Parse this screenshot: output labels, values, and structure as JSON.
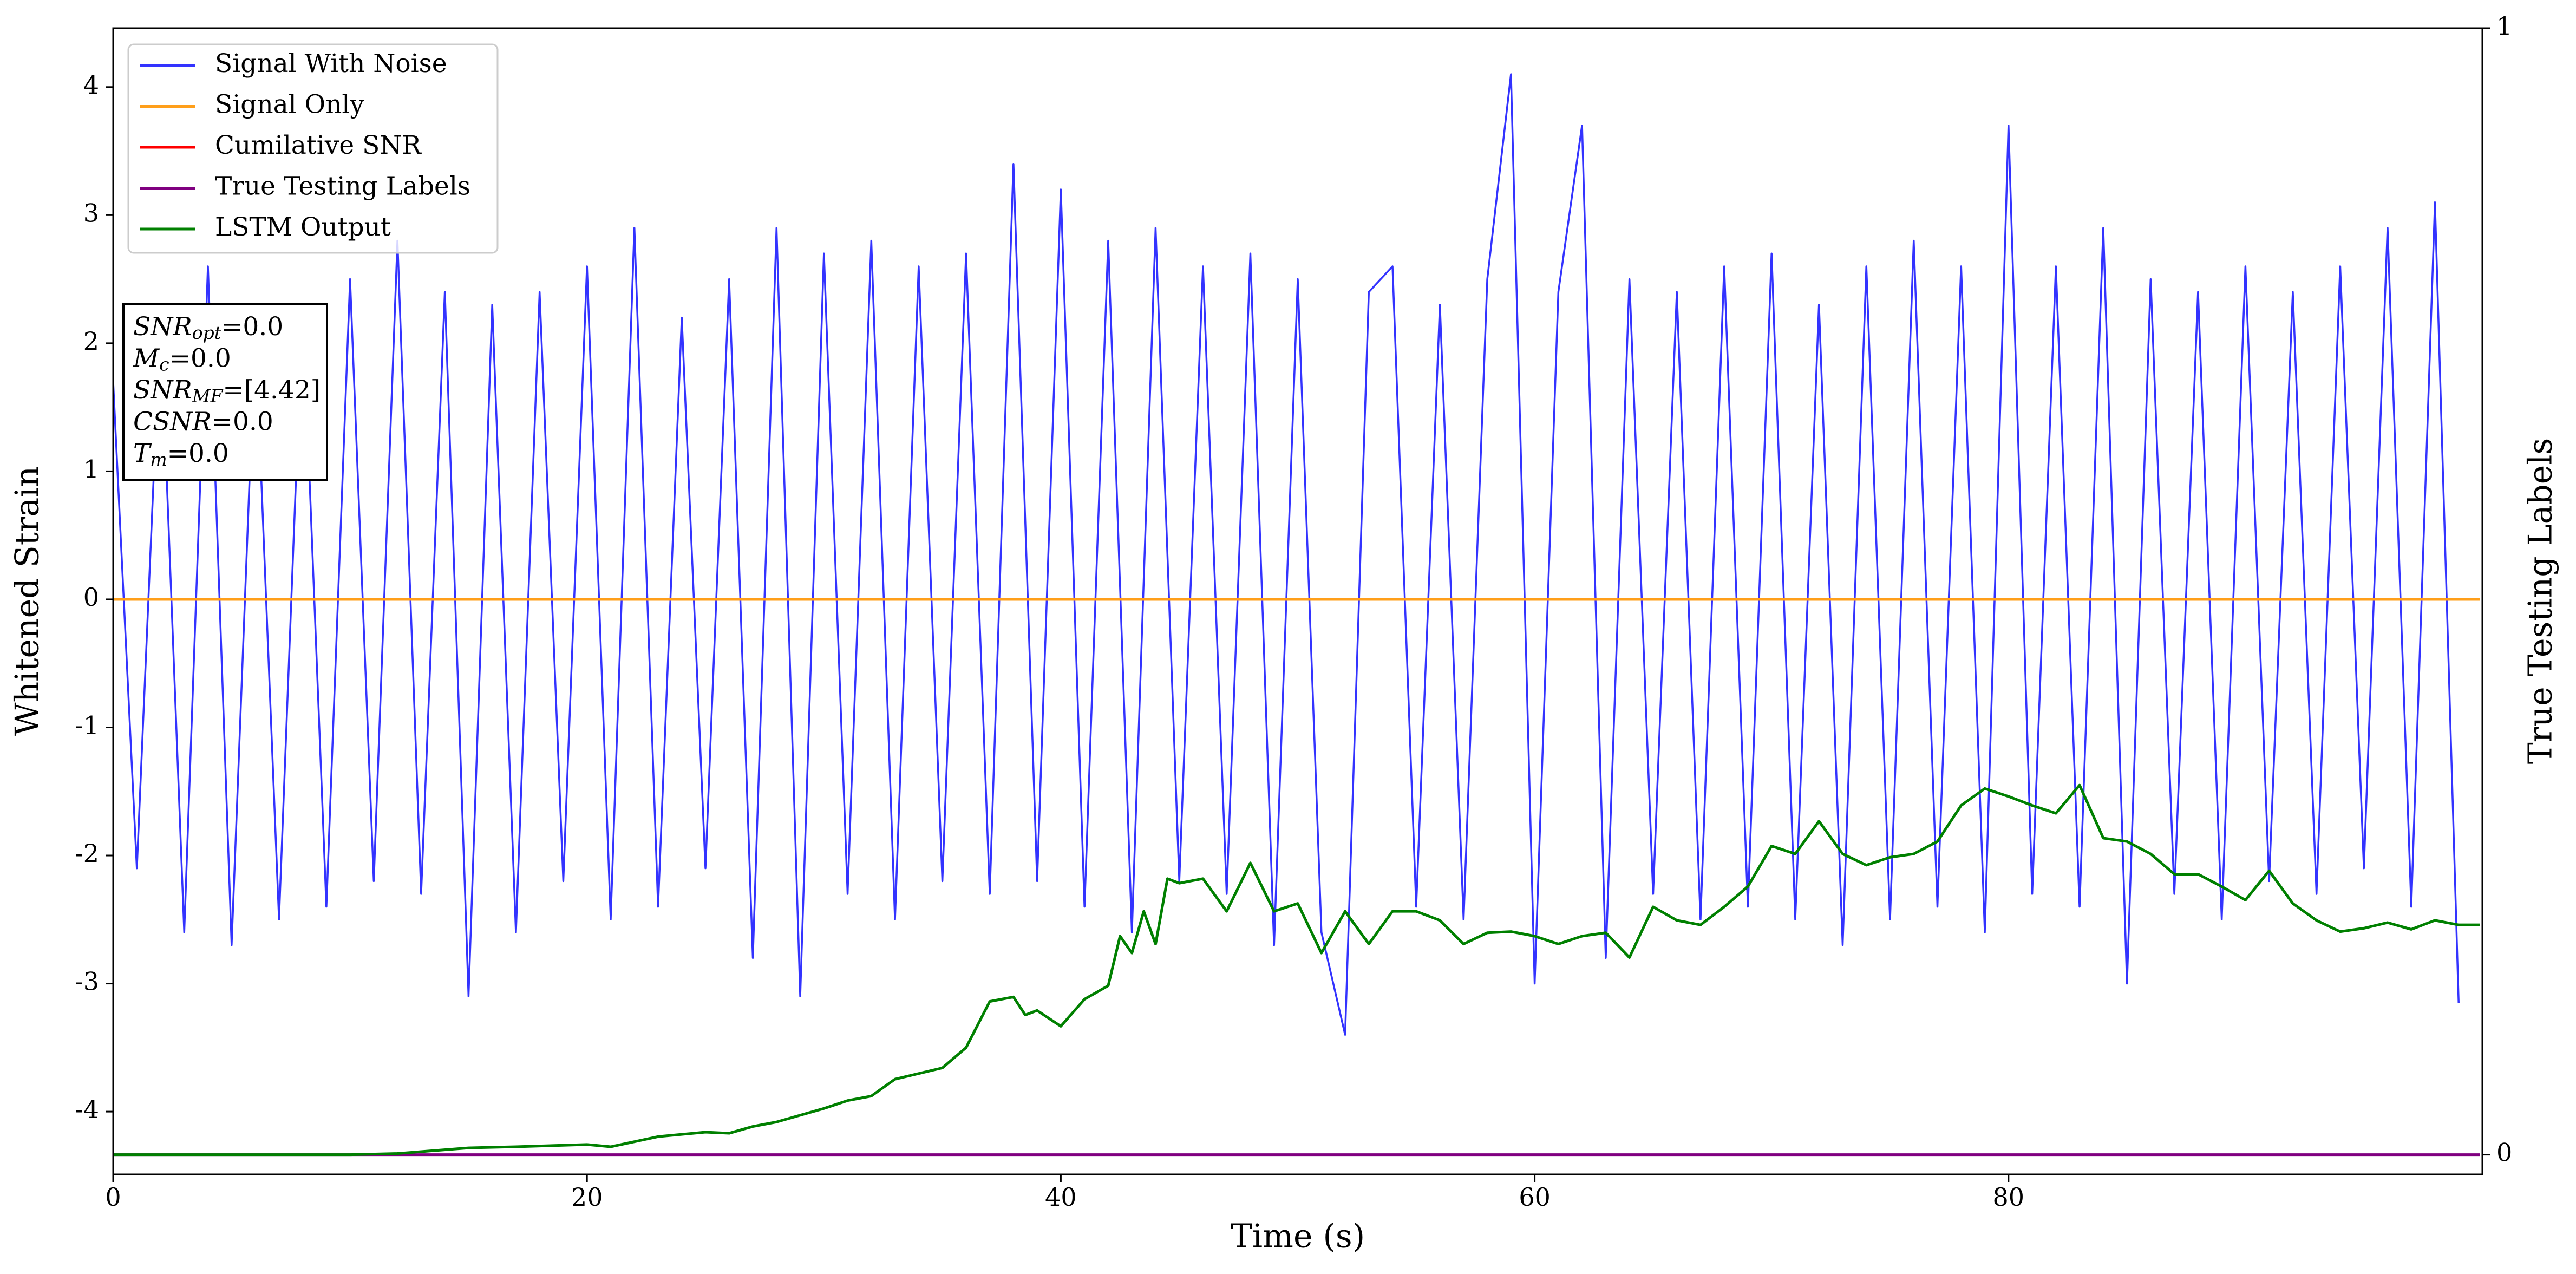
{
  "chart_data": {
    "type": "line",
    "xlabel": "Time (s)",
    "ylabel": "Whitened Strain",
    "y2label": "True Testing Labels",
    "xlim": [
      0,
      100
    ],
    "ylim": [
      -4.49,
      4.46
    ],
    "y2lim": [
      -0.0175,
      1.0
    ],
    "xticks": [
      0,
      20,
      40,
      60,
      80
    ],
    "yticks": [
      -4,
      -3,
      -2,
      -1,
      0,
      1,
      2,
      3,
      4
    ],
    "y2ticks": [
      0,
      1
    ],
    "grid": false,
    "legend_position": "upper left",
    "annotation_lines": [
      [
        "SNR",
        "opt",
        "=0.0"
      ],
      [
        "M",
        "c",
        "=0.0"
      ],
      [
        "SNR",
        "MF",
        "=[4.42]"
      ],
      [
        "CSNR",
        "=0.0"
      ],
      [
        "T",
        "m",
        "=0.0"
      ]
    ],
    "series": [
      {
        "name": "Signal With Noise",
        "color": "#3333ff",
        "axis": "y",
        "x": [
          0,
          1,
          2,
          3,
          4,
          5,
          6,
          7,
          8,
          9,
          10,
          11,
          12,
          13,
          14,
          15,
          16,
          17,
          18,
          19,
          20,
          21,
          22,
          23,
          24,
          25,
          26,
          27,
          28,
          29,
          30,
          31,
          32,
          33,
          34,
          35,
          36,
          37,
          38,
          39,
          40,
          41,
          42,
          43,
          44,
          45,
          46,
          47,
          48,
          49,
          50,
          51,
          52,
          53,
          54,
          55,
          56,
          57,
          58,
          59,
          60,
          61,
          62,
          63,
          64,
          65,
          66,
          67,
          68,
          69,
          70,
          71,
          72,
          73,
          74,
          75,
          76,
          77,
          78,
          79,
          80,
          81,
          82,
          83,
          84,
          85,
          86,
          87,
          88,
          89,
          90,
          91,
          92,
          93,
          94,
          95,
          96,
          97,
          98,
          99
        ],
        "values": [
          1.7,
          -2.1,
          2.2,
          -2.6,
          2.6,
          -2.7,
          2.1,
          -2.5,
          2.3,
          -2.4,
          2.5,
          -2.2,
          2.8,
          -2.3,
          2.4,
          -3.1,
          2.3,
          -2.6,
          2.4,
          -2.2,
          2.6,
          -2.5,
          2.9,
          -2.4,
          2.2,
          -2.1,
          2.5,
          -2.8,
          2.9,
          -3.1,
          2.7,
          -2.3,
          2.8,
          -2.5,
          2.6,
          -2.2,
          2.7,
          -2.3,
          3.4,
          -2.2,
          3.2,
          -2.4,
          2.8,
          -2.6,
          2.9,
          -2.2,
          2.6,
          -2.3,
          2.7,
          -2.7,
          2.5,
          -2.6,
          -3.4,
          2.4,
          2.6,
          -2.4,
          2.3,
          -2.5,
          2.5,
          4.1,
          -3.0,
          2.4,
          3.7,
          -2.8,
          2.5,
          -2.3,
          2.4,
          -2.5,
          2.6,
          -2.4,
          2.7,
          -2.5,
          2.3,
          -2.7,
          2.6,
          -2.5,
          2.8,
          -2.4,
          2.6,
          -2.6,
          3.7,
          -2.3,
          2.6,
          -2.4,
          2.9,
          -3.0,
          2.5,
          -2.3,
          2.4,
          -2.5,
          2.6,
          -2.2,
          2.4,
          -2.3,
          2.6,
          -2.1,
          2.9,
          -2.4,
          3.1,
          -3.15
        ]
      },
      {
        "name": "Signal Only",
        "color": "#ff9f1a",
        "axis": "y",
        "x": [
          0,
          99.9
        ],
        "values": [
          0,
          0
        ]
      },
      {
        "name": "Cumilative SNR",
        "color": "#ff0000",
        "axis": "y",
        "x": [
          0,
          99.9
        ],
        "values": [
          0,
          0
        ]
      },
      {
        "name": "True Testing Labels",
        "color": "#800080",
        "axis": "y2",
        "x": [
          0,
          99.9
        ],
        "values": [
          0,
          0
        ]
      },
      {
        "name": "LSTM Output",
        "color": "#008000",
        "axis": "y2",
        "x": [
          0,
          5,
          10,
          12,
          15,
          17,
          20,
          21,
          23,
          25,
          26,
          27,
          28,
          29,
          30,
          31,
          32,
          33,
          35,
          36,
          37,
          38,
          38.5,
          39,
          40,
          41,
          42,
          42.5,
          43,
          43.5,
          44,
          44.5,
          45,
          46,
          47,
          48,
          49,
          50,
          51,
          52,
          53,
          54,
          55,
          56,
          57,
          58,
          59,
          60,
          61,
          62,
          63,
          64,
          65,
          66,
          67,
          68,
          69,
          70,
          71,
          72,
          73,
          74,
          75,
          76,
          77,
          78,
          79,
          80,
          81,
          82,
          83,
          84,
          85,
          86,
          87,
          88,
          89,
          90,
          91,
          92,
          93,
          94,
          95,
          96,
          97,
          98,
          99,
          99.9
        ],
        "values": [
          0,
          0,
          0,
          0.001,
          0.006,
          0.007,
          0.009,
          0.007,
          0.016,
          0.02,
          0.019,
          0.025,
          0.029,
          0.035,
          0.041,
          0.048,
          0.052,
          0.067,
          0.077,
          0.095,
          0.136,
          0.14,
          0.124,
          0.128,
          0.114,
          0.138,
          0.15,
          0.194,
          0.179,
          0.216,
          0.187,
          0.245,
          0.241,
          0.245,
          0.216,
          0.259,
          0.216,
          0.223,
          0.179,
          0.216,
          0.187,
          0.216,
          0.216,
          0.208,
          0.187,
          0.197,
          0.198,
          0.194,
          0.187,
          0.194,
          0.197,
          0.175,
          0.22,
          0.208,
          0.204,
          0.22,
          0.238,
          0.274,
          0.267,
          0.296,
          0.267,
          0.257,
          0.264,
          0.267,
          0.278,
          0.31,
          0.325,
          0.318,
          0.31,
          0.303,
          0.328,
          0.281,
          0.278,
          0.267,
          0.249,
          0.249,
          0.238,
          0.226,
          0.252,
          0.223,
          0.208,
          0.198,
          0.201,
          0.206,
          0.2,
          0.208,
          0.204,
          0.204
        ]
      }
    ]
  }
}
